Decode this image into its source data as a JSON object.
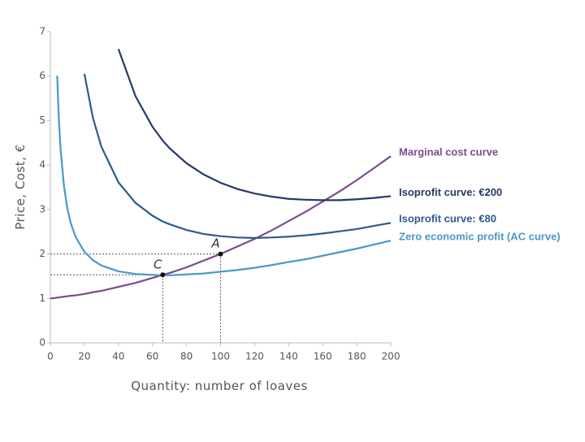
{
  "chart_data": {
    "type": "line",
    "x_label": "Quantity: number of loaves",
    "y_label": "Price, Cost, €",
    "x": [
      0,
      3,
      4,
      5,
      6,
      8,
      10,
      12,
      15,
      20,
      25,
      30,
      40,
      50,
      60,
      66,
      70,
      80,
      90,
      100,
      110,
      120,
      130,
      140,
      150,
      160,
      170,
      180,
      190,
      200
    ],
    "series": [
      {
        "name": "Marginal cost curve",
        "color": "#7b4a8e",
        "values": [
          1,
          1.01,
          1.02,
          1.02,
          1.03,
          1.04,
          1.05,
          1.06,
          1.07,
          1.1,
          1.14,
          1.17,
          1.26,
          1.35,
          1.46,
          1.53,
          1.57,
          1.7,
          1.85,
          2.0,
          2.17,
          2.34,
          2.53,
          2.74,
          2.95,
          3.18,
          3.41,
          3.66,
          3.93,
          4.2
        ]
      },
      {
        "name": "Isoprofit curve: €200",
        "color": "#263a66",
        "values": [
          null,
          null,
          null,
          null,
          null,
          null,
          null,
          null,
          null,
          null,
          null,
          null,
          6.61,
          5.55,
          4.86,
          4.55,
          4.38,
          4.04,
          3.79,
          3.6,
          3.46,
          3.36,
          3.29,
          3.24,
          3.22,
          3.21,
          3.21,
          3.23,
          3.26,
          3.3
        ]
      },
      {
        "name": "Isoprofit curve: €80",
        "color": "#2d5a8c",
        "values": [
          null,
          null,
          null,
          null,
          null,
          null,
          null,
          null,
          null,
          6.05,
          5.06,
          4.41,
          3.61,
          3.15,
          2.86,
          2.73,
          2.67,
          2.54,
          2.45,
          2.4,
          2.37,
          2.36,
          2.37,
          2.39,
          2.42,
          2.46,
          2.51,
          2.56,
          2.63,
          2.7
        ]
      },
      {
        "name": "Zero economic profit (AC curve)",
        "color": "#4a98c6",
        "values": [
          null,
          null,
          6.01,
          5.01,
          4.35,
          3.52,
          3.02,
          2.69,
          2.37,
          2.05,
          1.86,
          1.74,
          1.61,
          1.55,
          1.53,
          1.52,
          1.52,
          1.54,
          1.56,
          1.6,
          1.64,
          1.69,
          1.75,
          1.82,
          1.88,
          1.96,
          2.04,
          2.12,
          2.21,
          2.3
        ]
      }
    ],
    "points": [
      {
        "label": "A",
        "x": 100,
        "y": 2.0
      },
      {
        "label": "C",
        "x": 66,
        "y": 1.53
      }
    ],
    "xlim": [
      0,
      200
    ],
    "xticks": [
      0,
      20,
      40,
      60,
      80,
      100,
      120,
      140,
      160,
      180,
      200
    ],
    "ylim": [
      0,
      7
    ],
    "yticks": [
      0,
      1,
      2,
      3,
      4,
      5,
      6,
      7
    ]
  }
}
